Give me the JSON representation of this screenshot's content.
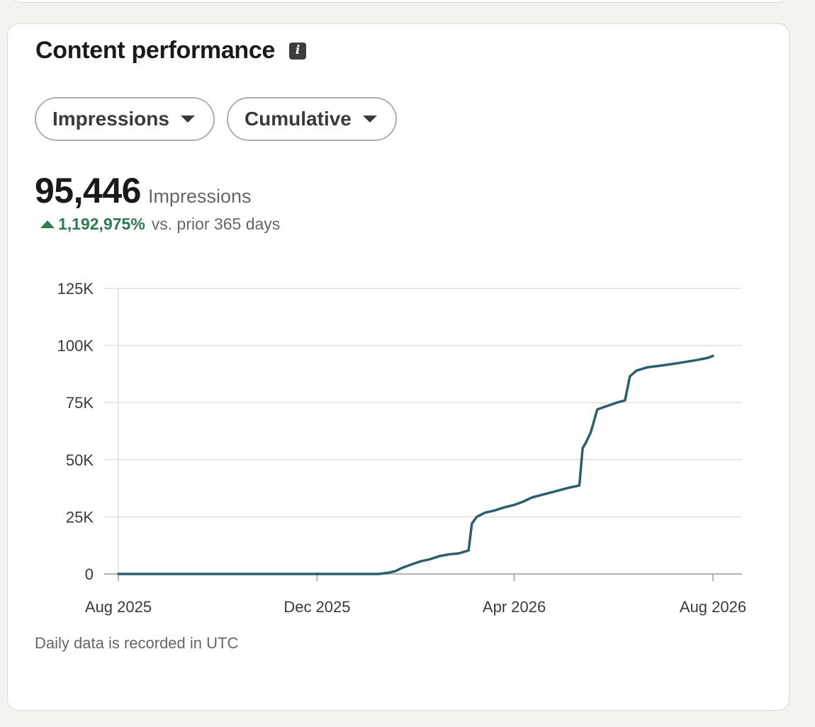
{
  "card": {
    "title": "Content performance",
    "info_icon": "info-icon",
    "filters": {
      "metric": "Impressions",
      "mode": "Cumulative"
    },
    "total": "95,446",
    "total_label": "Impressions",
    "change": "1,192,975%",
    "change_label": "vs. prior 365 days",
    "footnote": "Daily data is recorded in UTC"
  },
  "colors": {
    "line": "#2a5f6b",
    "positive": "#2f7a4f",
    "grid": "#e1e0dc"
  },
  "chart_data": {
    "type": "line",
    "title": "",
    "xlabel": "",
    "ylabel": "",
    "ylim": [
      0,
      125000
    ],
    "yticks": [
      0,
      25000,
      50000,
      75000,
      100000,
      125000
    ],
    "ytick_labels": [
      "0",
      "25K",
      "50K",
      "75K",
      "100K",
      "125K"
    ],
    "xtick_labels": [
      "Aug 2025",
      "Dec 2025",
      "Apr 2026",
      "Aug 2026"
    ],
    "xticks": [
      "2025-08-01",
      "2025-12-01",
      "2026-04-01",
      "2026-08-01"
    ],
    "grid": "horizontal",
    "series": [
      {
        "values": [
          [
            "2025-08-01",
            0
          ],
          [
            "2025-09-01",
            0
          ],
          [
            "2025-10-01",
            0
          ],
          [
            "2025-11-01",
            0
          ],
          [
            "2025-12-01",
            0
          ],
          [
            "2026-01-01",
            0
          ],
          [
            "2026-01-08",
            0
          ],
          [
            "2026-01-14",
            600
          ],
          [
            "2026-01-18",
            1200
          ],
          [
            "2026-01-22",
            2600
          ],
          [
            "2026-01-28",
            4200
          ],
          [
            "2026-02-03",
            5600
          ],
          [
            "2026-02-08",
            6400
          ],
          [
            "2026-02-14",
            7800
          ],
          [
            "2026-02-20",
            8600
          ],
          [
            "2026-02-26",
            9000
          ],
          [
            "2026-03-04",
            10300
          ],
          [
            "2026-03-06",
            22000
          ],
          [
            "2026-03-09",
            25000
          ],
          [
            "2026-03-14",
            26800
          ],
          [
            "2026-03-20",
            27800
          ],
          [
            "2026-03-26",
            29200
          ],
          [
            "2026-04-01",
            30200
          ],
          [
            "2026-04-06",
            31500
          ],
          [
            "2026-04-12",
            33500
          ],
          [
            "2026-04-20",
            35000
          ],
          [
            "2026-04-28",
            36500
          ],
          [
            "2026-05-05",
            37800
          ],
          [
            "2026-05-11",
            38700
          ],
          [
            "2026-05-13",
            55000
          ],
          [
            "2026-05-15",
            57500
          ],
          [
            "2026-05-18",
            62000
          ],
          [
            "2026-05-22",
            72000
          ],
          [
            "2026-05-28",
            73500
          ],
          [
            "2026-06-03",
            75000
          ],
          [
            "2026-06-08",
            76000
          ],
          [
            "2026-06-11",
            86500
          ],
          [
            "2026-06-15",
            89000
          ],
          [
            "2026-06-22",
            90500
          ],
          [
            "2026-06-30",
            91200
          ],
          [
            "2026-07-08",
            92000
          ],
          [
            "2026-07-15",
            92800
          ],
          [
            "2026-07-22",
            93600
          ],
          [
            "2026-07-29",
            94600
          ],
          [
            "2026-08-01",
            95446
          ]
        ]
      }
    ]
  }
}
